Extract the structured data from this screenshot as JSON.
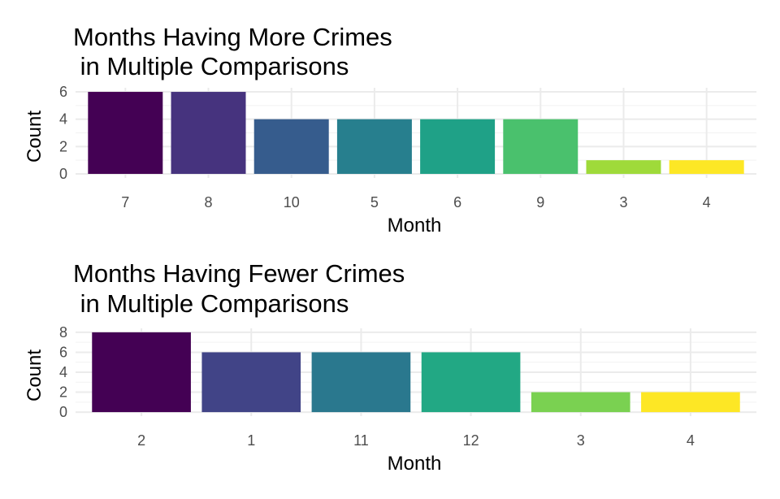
{
  "chart_data": [
    {
      "type": "bar",
      "title_line1": "Months Having More Crimes",
      "title_line2": " in Multiple Comparisons",
      "xlabel": "Month",
      "ylabel": "Count",
      "categories": [
        "7",
        "8",
        "10",
        "5",
        "6",
        "9",
        "3",
        "4"
      ],
      "values": [
        6,
        6,
        4,
        4,
        4,
        4,
        1,
        1
      ],
      "colors": [
        "#440154",
        "#46337E",
        "#365C8D",
        "#277F8E",
        "#1FA187",
        "#4AC16D",
        "#9FDA3A",
        "#FDE725"
      ],
      "yticks": [
        "0",
        "2",
        "4",
        "6"
      ],
      "ylim": [
        0,
        6
      ],
      "grid": true,
      "legend": "none"
    },
    {
      "type": "bar",
      "title_line1": "Months Having Fewer Crimes",
      "title_line2": " in Multiple Comparisons",
      "xlabel": "Month",
      "ylabel": "Count",
      "categories": [
        "2",
        "1",
        "11",
        "12",
        "3",
        "4"
      ],
      "values": [
        8,
        6,
        6,
        6,
        2,
        2
      ],
      "colors": [
        "#440154",
        "#414487",
        "#2A788E",
        "#22A884",
        "#7AD151",
        "#FDE725"
      ],
      "yticks": [
        "0",
        "2",
        "4",
        "6",
        "8"
      ],
      "ylim": [
        0,
        8
      ],
      "grid": true,
      "legend": "none"
    }
  ]
}
